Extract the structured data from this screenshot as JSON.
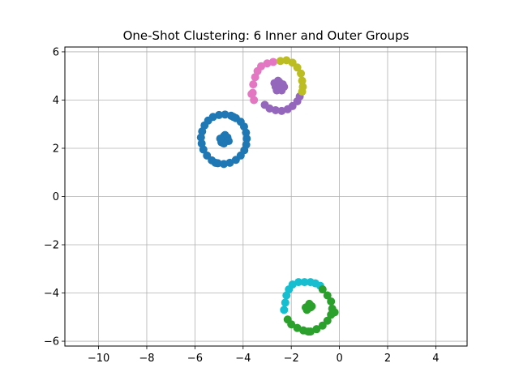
{
  "chart_data": {
    "type": "scatter",
    "title": "One-Shot Clustering: 6 Inner and Outer Groups",
    "xlabel": "",
    "ylabel": "",
    "xlim": [
      -11.4,
      5.3
    ],
    "ylim": [
      -6.2,
      6.2
    ],
    "xticks": [
      -10,
      -8,
      -6,
      -4,
      -2,
      0,
      2,
      4
    ],
    "yticks": [
      -6,
      -4,
      -2,
      0,
      2,
      4,
      6
    ],
    "xtick_labels": [
      "−10",
      "−8",
      "−6",
      "−4",
      "−2",
      "0",
      "2",
      "4"
    ],
    "ytick_labels": [
      "−6",
      "−4",
      "−2",
      "0",
      "2",
      "4",
      "6"
    ],
    "grid": true,
    "legend": "none",
    "series": [
      {
        "color": "#1f77b4",
        "points": [
          [
            -4.75,
            2.4
          ],
          [
            -4.7,
            2.3
          ],
          [
            -4.85,
            2.35
          ],
          [
            -4.8,
            2.5
          ],
          [
            -4.65,
            2.45
          ],
          [
            -4.9,
            2.25
          ],
          [
            -4.75,
            2.55
          ],
          [
            -4.6,
            2.3
          ],
          [
            -4.8,
            2.2
          ],
          [
            -4.95,
            2.4
          ],
          [
            -3.85,
            2.4
          ],
          [
            -3.88,
            2.65
          ],
          [
            -3.96,
            2.9
          ],
          [
            -4.1,
            3.1
          ],
          [
            -4.3,
            3.25
          ],
          [
            -4.5,
            3.35
          ],
          [
            -4.75,
            3.4
          ],
          [
            -5.0,
            3.38
          ],
          [
            -5.25,
            3.3
          ],
          [
            -5.45,
            3.15
          ],
          [
            -5.6,
            2.95
          ],
          [
            -5.7,
            2.7
          ],
          [
            -5.75,
            2.45
          ],
          [
            -5.72,
            2.2
          ],
          [
            -5.65,
            1.95
          ],
          [
            -5.5,
            1.7
          ],
          [
            -5.3,
            1.5
          ],
          [
            -5.05,
            1.38
          ],
          [
            -4.8,
            1.35
          ],
          [
            -4.55,
            1.4
          ],
          [
            -4.3,
            1.52
          ],
          [
            -4.1,
            1.7
          ],
          [
            -3.95,
            1.92
          ],
          [
            -3.87,
            2.15
          ],
          [
            -5.15,
            1.4
          ],
          [
            -4.4,
            3.3
          ]
        ]
      },
      {
        "color": "#9467bd",
        "points": [
          [
            -2.55,
            4.6
          ],
          [
            -2.45,
            4.5
          ],
          [
            -2.65,
            4.55
          ],
          [
            -2.5,
            4.75
          ],
          [
            -2.35,
            4.65
          ],
          [
            -2.6,
            4.4
          ],
          [
            -2.4,
            4.4
          ],
          [
            -2.7,
            4.7
          ],
          [
            -2.3,
            4.55
          ],
          [
            -2.55,
            4.8
          ],
          [
            -3.1,
            3.8
          ],
          [
            -2.9,
            3.65
          ],
          [
            -2.65,
            3.58
          ],
          [
            -2.4,
            3.55
          ],
          [
            -2.15,
            3.62
          ],
          [
            -1.95,
            3.75
          ],
          [
            -1.75,
            3.95
          ],
          [
            -1.65,
            4.15
          ]
        ]
      },
      {
        "color": "#e377c2",
        "points": [
          [
            -3.55,
            4.0
          ],
          [
            -3.6,
            4.3
          ],
          [
            -3.58,
            4.65
          ],
          [
            -3.5,
            4.95
          ],
          [
            -3.4,
            5.2
          ],
          [
            -3.25,
            5.4
          ],
          [
            -3.0,
            5.52
          ],
          [
            -2.75,
            5.58
          ],
          [
            -3.65,
            4.25
          ]
        ]
      },
      {
        "color": "#bcbd22",
        "points": [
          [
            -2.45,
            5.62
          ],
          [
            -2.2,
            5.65
          ],
          [
            -1.95,
            5.55
          ],
          [
            -1.75,
            5.35
          ],
          [
            -1.6,
            5.1
          ],
          [
            -1.55,
            4.8
          ],
          [
            -1.52,
            4.55
          ],
          [
            -1.55,
            4.35
          ]
        ]
      },
      {
        "color": "#17becf",
        "points": [
          [
            -2.25,
            -4.4
          ],
          [
            -2.2,
            -4.1
          ],
          [
            -2.1,
            -3.85
          ],
          [
            -1.95,
            -3.65
          ],
          [
            -1.7,
            -3.55
          ],
          [
            -1.45,
            -3.55
          ],
          [
            -1.2,
            -3.55
          ],
          [
            -1.0,
            -3.6
          ],
          [
            -0.8,
            -3.7
          ],
          [
            -2.3,
            -4.7
          ]
        ]
      },
      {
        "color": "#2ca02c",
        "points": [
          [
            -1.3,
            -4.55
          ],
          [
            -1.2,
            -4.6
          ],
          [
            -1.4,
            -4.6
          ],
          [
            -1.25,
            -4.45
          ],
          [
            -1.35,
            -4.7
          ],
          [
            -1.15,
            -4.55
          ],
          [
            -0.7,
            -3.85
          ],
          [
            -0.5,
            -4.1
          ],
          [
            -0.35,
            -4.35
          ],
          [
            -0.3,
            -4.65
          ],
          [
            -0.35,
            -4.9
          ],
          [
            -0.5,
            -5.15
          ],
          [
            -0.7,
            -5.35
          ],
          [
            -0.95,
            -5.5
          ],
          [
            -1.2,
            -5.6
          ],
          [
            -1.5,
            -5.55
          ],
          [
            -1.75,
            -5.45
          ],
          [
            -2.0,
            -5.3
          ],
          [
            -2.15,
            -5.1
          ],
          [
            -0.2,
            -4.8
          ],
          [
            -1.3,
            -5.6
          ]
        ]
      }
    ]
  }
}
